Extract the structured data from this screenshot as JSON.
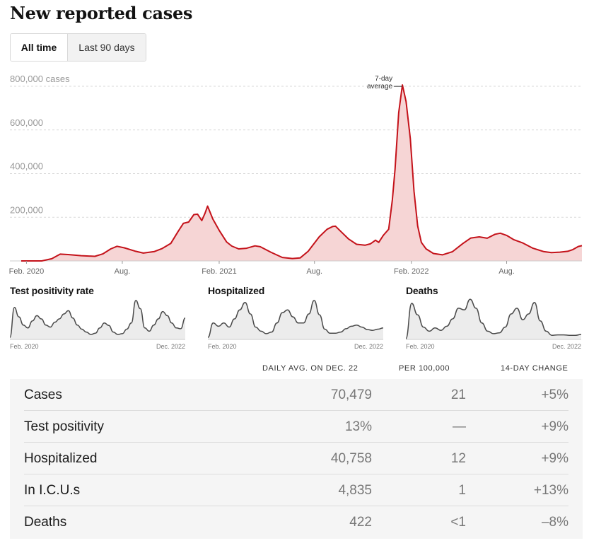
{
  "header": {
    "title": "New reported cases"
  },
  "toggle": {
    "all_time": "All time",
    "last_90": "Last 90 days"
  },
  "colors": {
    "line": "#c4121a",
    "fill": "#f6d5d5",
    "mini_line": "#4a4a4a",
    "mini_fill": "#ececec",
    "grid": "#d9d9d9"
  },
  "chart_data": {
    "type": "area",
    "title": "New reported cases",
    "yunit": "cases",
    "ylim": [
      0,
      800000
    ],
    "yticks": [
      200000,
      400000,
      600000,
      800000
    ],
    "ytick_labels": [
      "200,000",
      "400,000",
      "600,000",
      "800,000 cases"
    ],
    "xticks": [
      "Feb. 2020",
      "Aug.",
      "Feb. 2021",
      "Aug.",
      "Feb. 2022",
      "Aug."
    ],
    "xtick_dates": [
      "2020-02-01",
      "2020-08-01",
      "2021-02-01",
      "2021-08-01",
      "2022-02-01",
      "2022-08-01"
    ],
    "grid": true,
    "annotation": {
      "text": [
        "7-day",
        "average"
      ],
      "date": "2022-01-15"
    },
    "series": [
      {
        "points": [
          [
            "2020-01-22",
            0
          ],
          [
            "2020-03-01",
            0
          ],
          [
            "2020-03-20",
            10000
          ],
          [
            "2020-04-05",
            31000
          ],
          [
            "2020-04-20",
            29000
          ],
          [
            "2020-05-15",
            24000
          ],
          [
            "2020-06-10",
            21000
          ],
          [
            "2020-06-25",
            32000
          ],
          [
            "2020-07-10",
            55000
          ],
          [
            "2020-07-22",
            67000
          ],
          [
            "2020-08-05",
            60000
          ],
          [
            "2020-08-25",
            45000
          ],
          [
            "2020-09-10",
            36000
          ],
          [
            "2020-10-01",
            43000
          ],
          [
            "2020-10-15",
            56000
          ],
          [
            "2020-11-01",
            80000
          ],
          [
            "2020-11-15",
            135000
          ],
          [
            "2020-11-25",
            172000
          ],
          [
            "2020-12-05",
            178000
          ],
          [
            "2020-12-15",
            212000
          ],
          [
            "2020-12-22",
            214000
          ],
          [
            "2020-12-30",
            185000
          ],
          [
            "2021-01-05",
            218000
          ],
          [
            "2021-01-10",
            251000
          ],
          [
            "2021-01-20",
            192000
          ],
          [
            "2021-02-01",
            140000
          ],
          [
            "2021-02-15",
            87000
          ],
          [
            "2021-02-25",
            68000
          ],
          [
            "2021-03-10",
            55000
          ],
          [
            "2021-03-25",
            58000
          ],
          [
            "2021-04-10",
            69000
          ],
          [
            "2021-04-20",
            65000
          ],
          [
            "2021-05-10",
            40000
          ],
          [
            "2021-06-01",
            16000
          ],
          [
            "2021-06-20",
            11000
          ],
          [
            "2021-07-05",
            14000
          ],
          [
            "2021-07-20",
            44000
          ],
          [
            "2021-08-10",
            110000
          ],
          [
            "2021-08-25",
            145000
          ],
          [
            "2021-09-05",
            158000
          ],
          [
            "2021-09-10",
            159000
          ],
          [
            "2021-09-20",
            135000
          ],
          [
            "2021-10-05",
            100000
          ],
          [
            "2021-10-20",
            76000
          ],
          [
            "2021-11-05",
            72000
          ],
          [
            "2021-11-15",
            78000
          ],
          [
            "2021-11-25",
            95000
          ],
          [
            "2021-12-01",
            85000
          ],
          [
            "2021-12-10",
            118000
          ],
          [
            "2021-12-20",
            145000
          ],
          [
            "2021-12-27",
            280000
          ],
          [
            "2022-01-01",
            420000
          ],
          [
            "2022-01-08",
            680000
          ],
          [
            "2022-01-15",
            806000
          ],
          [
            "2022-01-22",
            730000
          ],
          [
            "2022-01-30",
            560000
          ],
          [
            "2022-02-06",
            320000
          ],
          [
            "2022-02-13",
            160000
          ],
          [
            "2022-02-20",
            85000
          ],
          [
            "2022-03-01",
            55000
          ],
          [
            "2022-03-15",
            34000
          ],
          [
            "2022-04-01",
            28000
          ],
          [
            "2022-04-20",
            42000
          ],
          [
            "2022-05-10",
            80000
          ],
          [
            "2022-05-25",
            105000
          ],
          [
            "2022-06-10",
            110000
          ],
          [
            "2022-06-25",
            104000
          ],
          [
            "2022-07-10",
            122000
          ],
          [
            "2022-07-20",
            127000
          ],
          [
            "2022-08-01",
            117000
          ],
          [
            "2022-08-15",
            97000
          ],
          [
            "2022-09-01",
            82000
          ],
          [
            "2022-09-20",
            58000
          ],
          [
            "2022-10-10",
            43000
          ],
          [
            "2022-10-25",
            38000
          ],
          [
            "2022-11-10",
            40000
          ],
          [
            "2022-11-25",
            44000
          ],
          [
            "2022-12-05",
            52000
          ],
          [
            "2022-12-15",
            66000
          ],
          [
            "2022-12-22",
            70000
          ]
        ]
      }
    ]
  },
  "mini_charts": [
    {
      "title": "Test positivity rate",
      "start_label": "Feb. 2020",
      "end_label": "Dec. 2022",
      "values": [
        0.05,
        0.78,
        0.55,
        0.35,
        0.28,
        0.45,
        0.58,
        0.5,
        0.35,
        0.3,
        0.42,
        0.5,
        0.62,
        0.7,
        0.52,
        0.35,
        0.25,
        0.18,
        0.12,
        0.15,
        0.28,
        0.4,
        0.34,
        0.18,
        0.12,
        0.14,
        0.25,
        0.4,
        0.95,
        0.75,
        0.28,
        0.2,
        0.35,
        0.5,
        0.68,
        0.58,
        0.4,
        0.28,
        0.26,
        0.52
      ]
    },
    {
      "title": "Hospitalized",
      "start_label": "Feb. 2020",
      "end_label": "Dec. 2022",
      "values": [
        0.05,
        0.4,
        0.32,
        0.4,
        0.3,
        0.5,
        0.72,
        0.9,
        0.62,
        0.3,
        0.2,
        0.14,
        0.18,
        0.4,
        0.65,
        0.72,
        0.55,
        0.4,
        0.4,
        0.62,
        0.95,
        0.6,
        0.25,
        0.15,
        0.15,
        0.18,
        0.26,
        0.32,
        0.35,
        0.3,
        0.24,
        0.22,
        0.25,
        0.28
      ]
    },
    {
      "title": "Deaths",
      "start_label": "Feb. 2020",
      "end_label": "Dec. 2022",
      "values": [
        0.02,
        0.88,
        0.6,
        0.3,
        0.2,
        0.28,
        0.22,
        0.32,
        0.5,
        0.76,
        0.72,
        0.98,
        0.76,
        0.4,
        0.2,
        0.14,
        0.16,
        0.3,
        0.62,
        0.76,
        0.48,
        0.62,
        0.9,
        0.45,
        0.2,
        0.1,
        0.11,
        0.11,
        0.1,
        0.1,
        0.12
      ]
    }
  ],
  "table": {
    "headers": {
      "daily_avg": "DAILY AVG. ON DEC. 22",
      "per_100k": "PER 100,000",
      "change": "14-DAY CHANGE"
    },
    "rows": [
      {
        "label": "Cases",
        "daily": "70,479",
        "per": "21",
        "change": "+5%"
      },
      {
        "label": "Test positivity",
        "daily": "13%",
        "per": "—",
        "change": "+9%"
      },
      {
        "label": "Hospitalized",
        "daily": "40,758",
        "per": "12",
        "change": "+9%"
      },
      {
        "label": "In I.C.U.s",
        "daily": "4,835",
        "per": "1",
        "change": "+13%"
      },
      {
        "label": "Deaths",
        "daily": "422",
        "per": "<1",
        "change": "–8%"
      }
    ]
  }
}
